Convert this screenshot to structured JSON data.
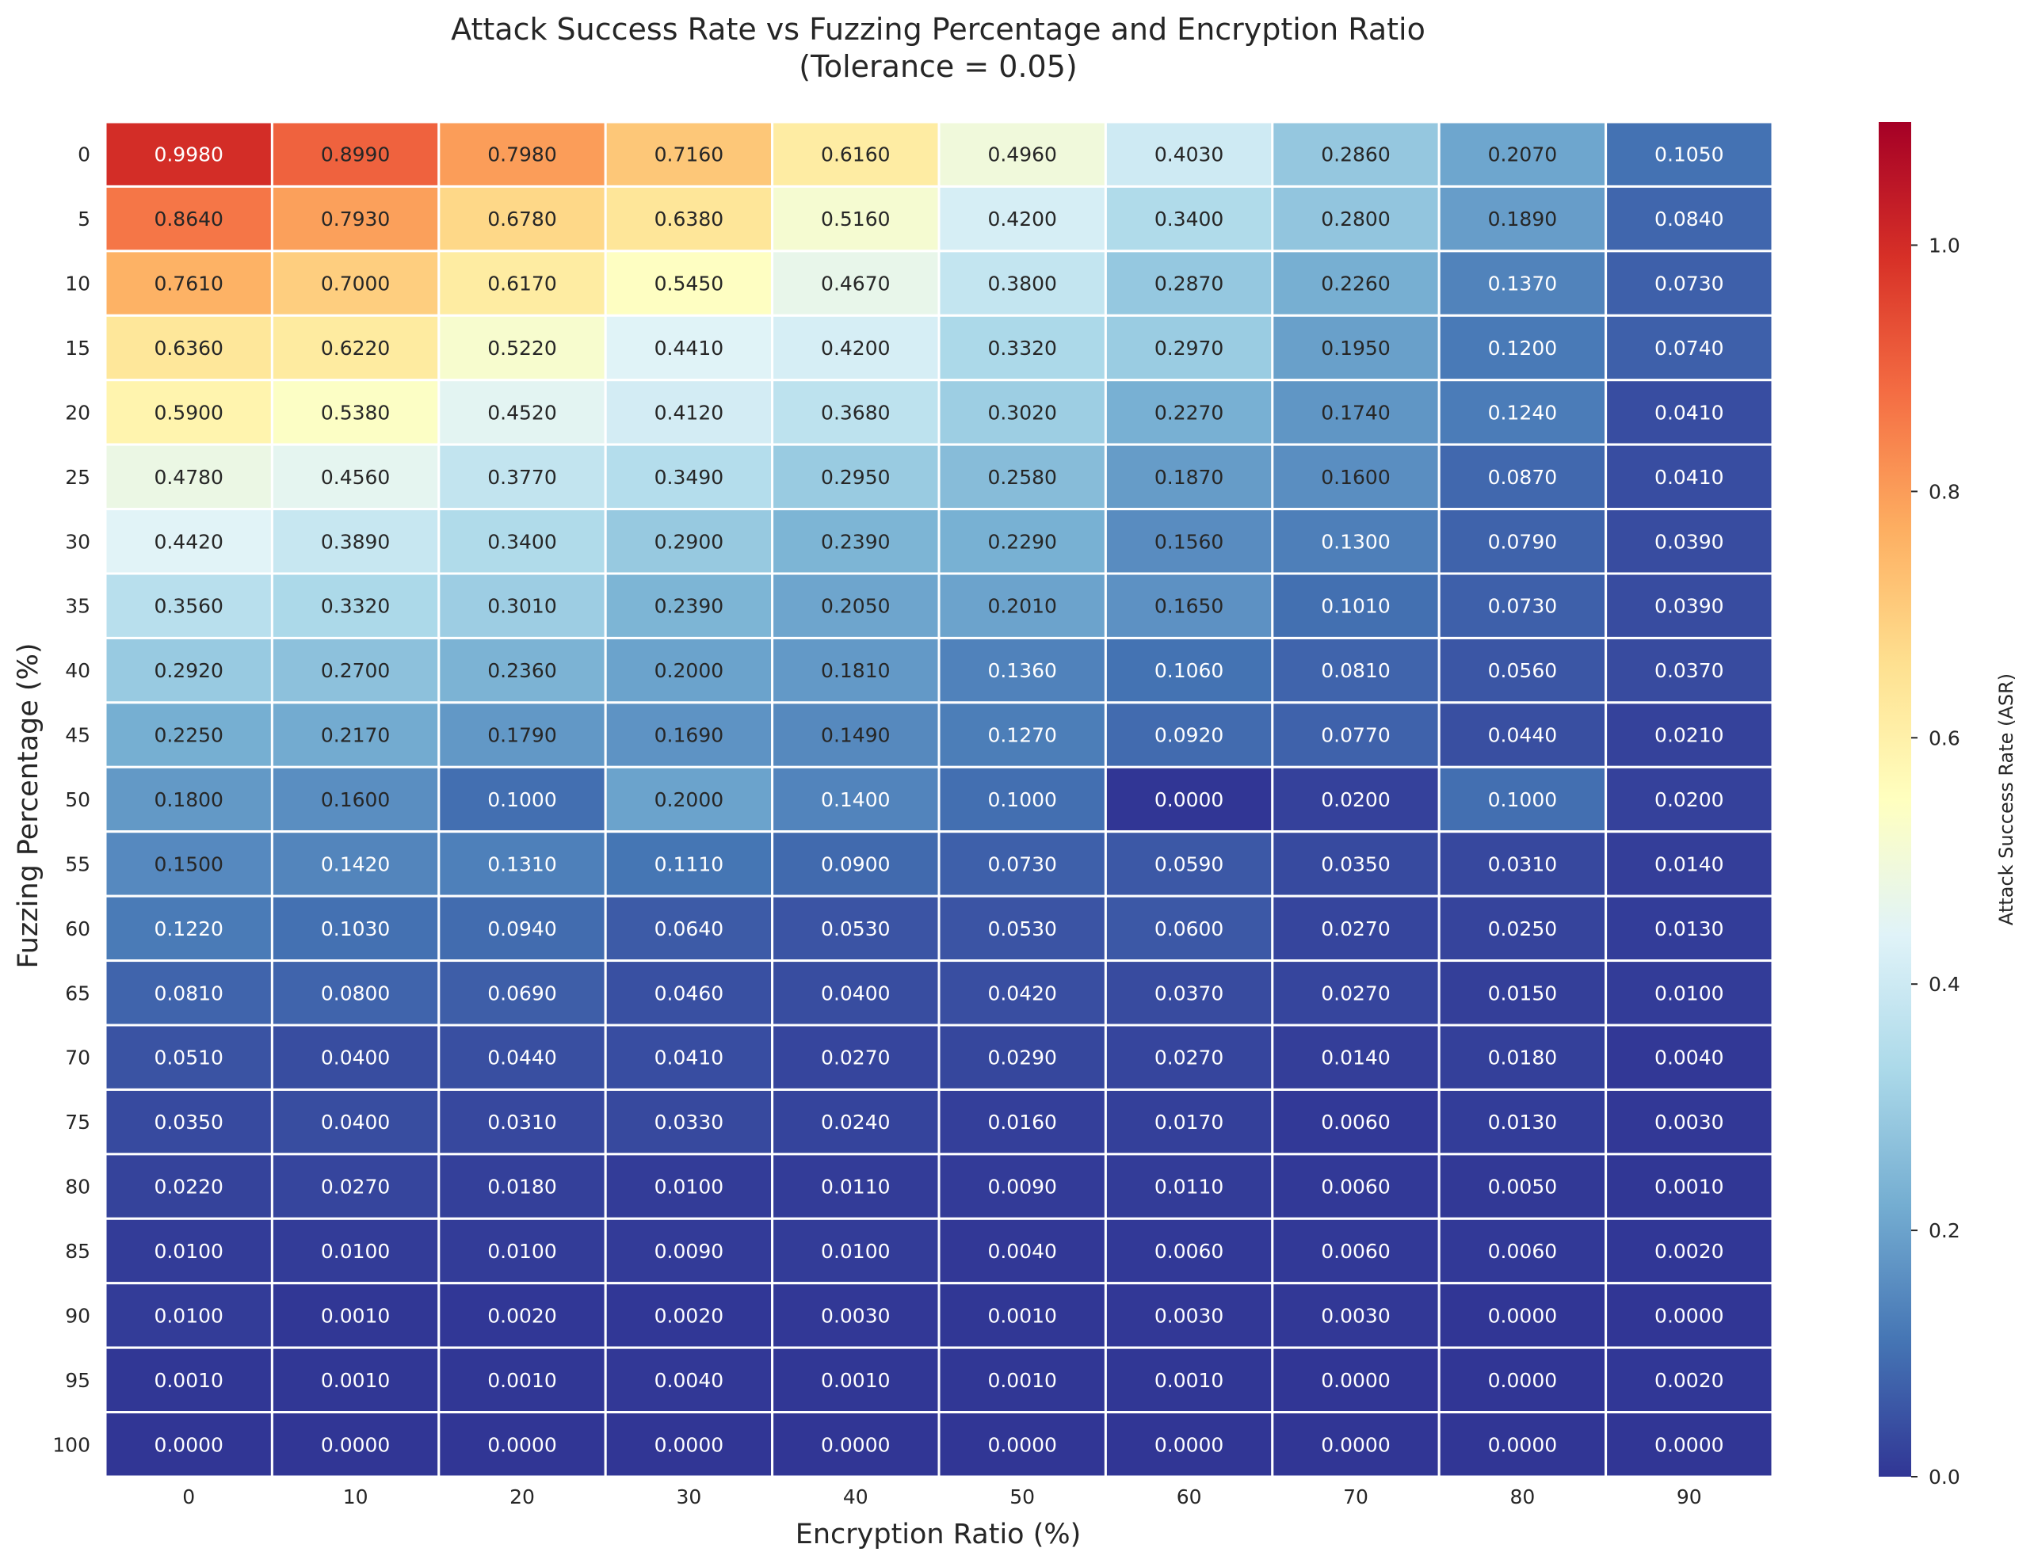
{
  "chart_data": {
    "type": "heatmap",
    "title": "Attack Success Rate vs Fuzzing Percentage and Encryption Ratio",
    "subtitle": "(Tolerance = 0.05)",
    "xlabel": "Encryption Ratio (%)",
    "ylabel": "Fuzzing Percentage (%)",
    "colorbar_label": "Attack Success Rate (ASR)",
    "colorbar_range": [
      0.0,
      1.1
    ],
    "colorbar_ticks": [
      "0.0",
      "0.2",
      "0.4",
      "0.6",
      "0.8",
      "1.0"
    ],
    "colormap": "RdYlBu_r",
    "x": [
      "0",
      "10",
      "20",
      "30",
      "40",
      "50",
      "60",
      "70",
      "80",
      "90"
    ],
    "y": [
      "0",
      "5",
      "10",
      "15",
      "20",
      "25",
      "30",
      "35",
      "40",
      "45",
      "50",
      "55",
      "60",
      "65",
      "70",
      "75",
      "80",
      "85",
      "90",
      "95",
      "100"
    ],
    "values": [
      [
        "0.9980",
        "0.8990",
        "0.7980",
        "0.7160",
        "0.6160",
        "0.4960",
        "0.4030",
        "0.2860",
        "0.2070",
        "0.1050"
      ],
      [
        "0.8640",
        "0.7930",
        "0.6780",
        "0.6380",
        "0.5160",
        "0.4200",
        "0.3400",
        "0.2800",
        "0.1890",
        "0.0840"
      ],
      [
        "0.7610",
        "0.7000",
        "0.6170",
        "0.5450",
        "0.4670",
        "0.3800",
        "0.2870",
        "0.2260",
        "0.1370",
        "0.0730"
      ],
      [
        "0.6360",
        "0.6220",
        "0.5220",
        "0.4410",
        "0.4200",
        "0.3320",
        "0.2970",
        "0.1950",
        "0.1200",
        "0.0740"
      ],
      [
        "0.5900",
        "0.5380",
        "0.4520",
        "0.4120",
        "0.3680",
        "0.3020",
        "0.2270",
        "0.1740",
        "0.1240",
        "0.0410"
      ],
      [
        "0.4780",
        "0.4560",
        "0.3770",
        "0.3490",
        "0.2950",
        "0.2580",
        "0.1870",
        "0.1600",
        "0.0870",
        "0.0410"
      ],
      [
        "0.4420",
        "0.3890",
        "0.3400",
        "0.2900",
        "0.2390",
        "0.2290",
        "0.1560",
        "0.1300",
        "0.0790",
        "0.0390"
      ],
      [
        "0.3560",
        "0.3320",
        "0.3010",
        "0.2390",
        "0.2050",
        "0.2010",
        "0.1650",
        "0.1010",
        "0.0730",
        "0.0390"
      ],
      [
        "0.2920",
        "0.2700",
        "0.2360",
        "0.2000",
        "0.1810",
        "0.1360",
        "0.1060",
        "0.0810",
        "0.0560",
        "0.0370"
      ],
      [
        "0.2250",
        "0.2170",
        "0.1790",
        "0.1690",
        "0.1490",
        "0.1270",
        "0.0920",
        "0.0770",
        "0.0440",
        "0.0210"
      ],
      [
        "0.1800",
        "0.1600",
        "0.1000",
        "0.2000",
        "0.1400",
        "0.1000",
        "0.0000",
        "0.0200",
        "0.1000",
        "0.0200"
      ],
      [
        "0.1500",
        "0.1420",
        "0.1310",
        "0.1110",
        "0.0900",
        "0.0730",
        "0.0590",
        "0.0350",
        "0.0310",
        "0.0140"
      ],
      [
        "0.1220",
        "0.1030",
        "0.0940",
        "0.0640",
        "0.0530",
        "0.0530",
        "0.0600",
        "0.0270",
        "0.0250",
        "0.0130"
      ],
      [
        "0.0810",
        "0.0800",
        "0.0690",
        "0.0460",
        "0.0400",
        "0.0420",
        "0.0370",
        "0.0270",
        "0.0150",
        "0.0100"
      ],
      [
        "0.0510",
        "0.0400",
        "0.0440",
        "0.0410",
        "0.0270",
        "0.0290",
        "0.0270",
        "0.0140",
        "0.0180",
        "0.0040"
      ],
      [
        "0.0350",
        "0.0400",
        "0.0310",
        "0.0330",
        "0.0240",
        "0.0160",
        "0.0170",
        "0.0060",
        "0.0130",
        "0.0030"
      ],
      [
        "0.0220",
        "0.0270",
        "0.0180",
        "0.0100",
        "0.0110",
        "0.0090",
        "0.0110",
        "0.0060",
        "0.0050",
        "0.0010"
      ],
      [
        "0.0100",
        "0.0100",
        "0.0100",
        "0.0090",
        "0.0100",
        "0.0040",
        "0.0060",
        "0.0060",
        "0.0060",
        "0.0020"
      ],
      [
        "0.0100",
        "0.0010",
        "0.0020",
        "0.0020",
        "0.0030",
        "0.0010",
        "0.0030",
        "0.0030",
        "0.0000",
        "0.0000"
      ],
      [
        "0.0010",
        "0.0010",
        "0.0010",
        "0.0040",
        "0.0010",
        "0.0010",
        "0.0010",
        "0.0000",
        "0.0000",
        "0.0020"
      ],
      [
        "0.0000",
        "0.0000",
        "0.0000",
        "0.0000",
        "0.0000",
        "0.0000",
        "0.0000",
        "0.0000",
        "0.0000",
        "0.0000"
      ]
    ]
  }
}
